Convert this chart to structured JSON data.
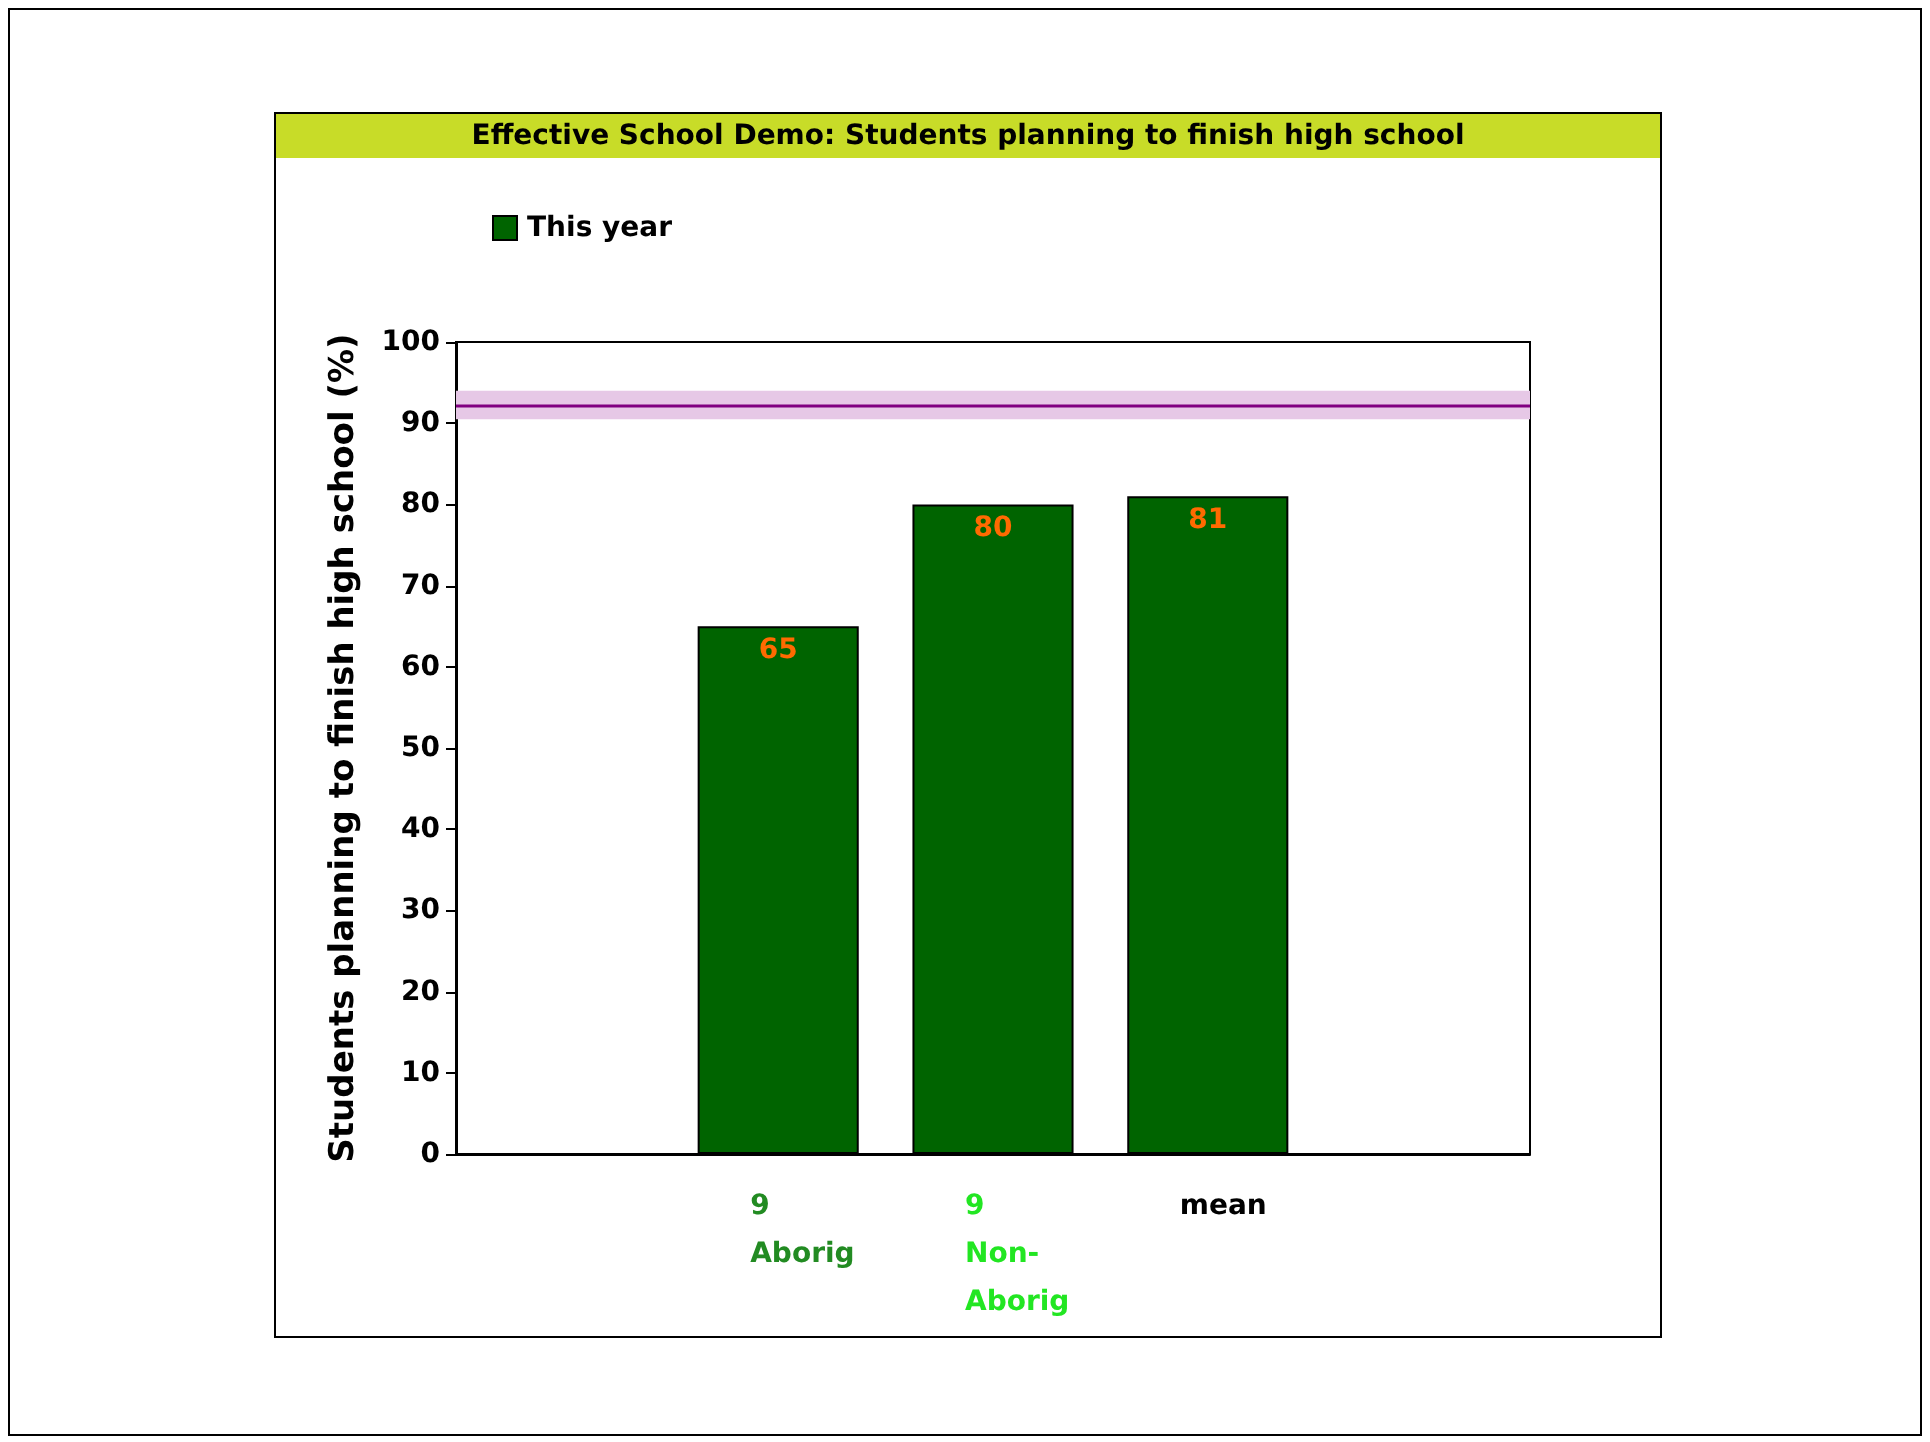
{
  "chart_data": {
    "type": "bar",
    "title": "Effective School Demo: Students planning to finish high school",
    "ylabel": "Students planning to finish high school (%)",
    "categories": [
      null,
      "9\nAborig",
      "9\nNon-\nAborig",
      "mean",
      null
    ],
    "series": [
      {
        "name": "This year",
        "color": "#006400",
        "values": [
          null,
          65,
          80,
          81,
          null
        ]
      }
    ],
    "ylim": [
      0,
      100
    ],
    "yticks": [
      0,
      10,
      20,
      30,
      40,
      50,
      60,
      70,
      80,
      90,
      100
    ],
    "ref_lines": [
      {
        "axis": "y",
        "value": 92.3,
        "color": "#800080"
      }
    ],
    "bands": [
      {
        "axis": "y",
        "from": 90.5,
        "to": 94,
        "color": "#e6c8e6"
      }
    ],
    "data_labels": true,
    "legend": "top left",
    "grid": false
  }
}
